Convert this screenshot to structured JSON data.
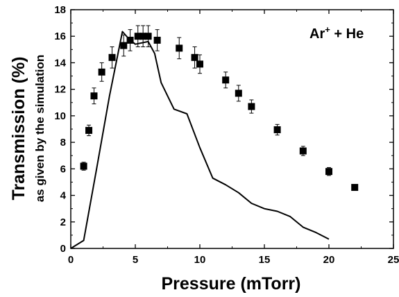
{
  "chart_data": {
    "type": "scatter",
    "title": "",
    "xlabel": "Pressure (mTorr)",
    "ylabel": "Transmission (%)",
    "ylabel_sub": "as given by the simulation",
    "annotation": {
      "base": "Ar",
      "sup": "+",
      "rest": " + He"
    },
    "xlim": [
      0,
      25
    ],
    "ylim": [
      0,
      18
    ],
    "x_ticks": [
      0,
      5,
      10,
      15,
      20,
      25
    ],
    "y_ticks": [
      0,
      2,
      4,
      6,
      8,
      10,
      12,
      14,
      16,
      18
    ],
    "grid": false,
    "legend": "none",
    "series": [
      {
        "kind": "markers",
        "marker": "square",
        "color": "#000000",
        "points": [
          {
            "x": 1.0,
            "y": 6.2,
            "err": 0.3
          },
          {
            "x": 1.4,
            "y": 8.9,
            "err": 0.4
          },
          {
            "x": 1.8,
            "y": 11.5,
            "err": 0.6
          },
          {
            "x": 2.4,
            "y": 13.3,
            "err": 0.7
          },
          {
            "x": 3.2,
            "y": 14.4,
            "err": 0.8
          },
          {
            "x": 4.1,
            "y": 15.3,
            "err": 0.8
          },
          {
            "x": 4.6,
            "y": 15.7,
            "err": 0.8
          },
          {
            "x": 5.2,
            "y": 16.0,
            "err": 0.8
          },
          {
            "x": 5.6,
            "y": 16.0,
            "err": 0.8
          },
          {
            "x": 6.0,
            "y": 16.0,
            "err": 0.8
          },
          {
            "x": 6.7,
            "y": 15.7,
            "err": 0.8
          },
          {
            "x": 8.4,
            "y": 15.1,
            "err": 0.8
          },
          {
            "x": 9.6,
            "y": 14.4,
            "err": 0.8
          },
          {
            "x": 10.0,
            "y": 13.9,
            "err": 0.7
          },
          {
            "x": 12.0,
            "y": 12.7,
            "err": 0.6
          },
          {
            "x": 13.0,
            "y": 11.7,
            "err": 0.6
          },
          {
            "x": 14.0,
            "y": 10.7,
            "err": 0.5
          },
          {
            "x": 16.0,
            "y": 8.95,
            "err": 0.4
          },
          {
            "x": 18.0,
            "y": 7.35,
            "err": 0.35
          },
          {
            "x": 20.0,
            "y": 5.8,
            "err": 0.3
          },
          {
            "x": 22.0,
            "y": 4.6,
            "err": 0.0
          }
        ]
      },
      {
        "kind": "line",
        "color": "#000000",
        "points": [
          {
            "x": 0.0,
            "y": 0.0
          },
          {
            "x": 1.0,
            "y": 0.6
          },
          {
            "x": 2.0,
            "y": 6.0
          },
          {
            "x": 3.0,
            "y": 11.5
          },
          {
            "x": 4.0,
            "y": 16.35
          },
          {
            "x": 4.5,
            "y": 15.8
          },
          {
            "x": 5.0,
            "y": 15.4
          },
          {
            "x": 6.0,
            "y": 15.6
          },
          {
            "x": 6.5,
            "y": 14.7
          },
          {
            "x": 7.0,
            "y": 12.5
          },
          {
            "x": 8.0,
            "y": 10.5
          },
          {
            "x": 9.0,
            "y": 10.15
          },
          {
            "x": 10.0,
            "y": 7.6
          },
          {
            "x": 11.0,
            "y": 5.3
          },
          {
            "x": 12.0,
            "y": 4.8
          },
          {
            "x": 13.0,
            "y": 4.2
          },
          {
            "x": 14.0,
            "y": 3.4
          },
          {
            "x": 15.0,
            "y": 3.0
          },
          {
            "x": 16.0,
            "y": 2.8
          },
          {
            "x": 17.0,
            "y": 2.4
          },
          {
            "x": 18.0,
            "y": 1.6
          },
          {
            "x": 19.0,
            "y": 1.2
          },
          {
            "x": 20.0,
            "y": 0.7
          }
        ]
      }
    ]
  }
}
